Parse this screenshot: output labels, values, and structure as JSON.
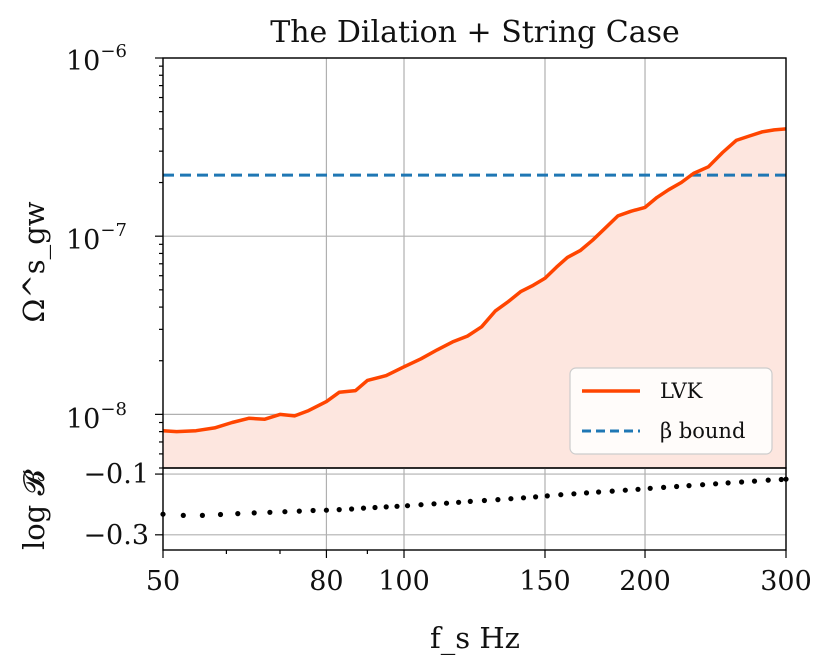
{
  "chart_data": [
    {
      "panel": "main",
      "type": "line",
      "title": "The Dilation + String Case",
      "ylabel": "Ω^s_gw",
      "xscale": "log",
      "yscale": "log",
      "xlim": [
        50,
        300
      ],
      "ylim": [
        5e-09,
        1e-06
      ],
      "ytick_labels": [
        {
          "base": "10",
          "exp": "−6",
          "value": 1e-06
        },
        {
          "base": "10",
          "exp": "−7",
          "value": 1e-07
        },
        {
          "base": "10",
          "exp": "−8",
          "value": 1e-08
        }
      ],
      "series": [
        {
          "name": "LVK",
          "style": "solid",
          "color": "#ff4500",
          "fill_below": true,
          "fill_color": "#fde6df",
          "x": [
            50,
            52,
            55,
            58,
            61,
            64,
            67,
            70,
            73,
            76,
            80,
            83,
            87,
            90,
            95,
            100,
            105,
            110,
            115,
            120,
            125,
            130,
            135,
            140,
            145,
            150,
            155,
            160,
            166,
            172,
            178,
            185,
            192,
            200,
            207,
            214,
            222,
            230,
            240,
            250,
            260,
            270,
            280,
            290,
            300
          ],
          "y": [
            8.1e-09,
            8e-09,
            8.1e-09,
            8.4e-09,
            9e-09,
            9.5e-09,
            9.4e-09,
            1e-08,
            9.8e-09,
            1.05e-08,
            1.18e-08,
            1.33e-08,
            1.36e-08,
            1.55e-08,
            1.65e-08,
            1.85e-08,
            2.05e-08,
            2.3e-08,
            2.55e-08,
            2.75e-08,
            3.1e-08,
            3.8e-08,
            4.3e-08,
            4.9e-08,
            5.3e-08,
            5.8e-08,
            6.7e-08,
            7.6e-08,
            8.3e-08,
            9.5e-08,
            1.1e-07,
            1.3e-07,
            1.38e-07,
            1.45e-07,
            1.65e-07,
            1.82e-07,
            2e-07,
            2.25e-07,
            2.45e-07,
            2.95e-07,
            3.45e-07,
            3.65e-07,
            3.85e-07,
            3.95e-07,
            4e-07
          ]
        },
        {
          "name": "β bound",
          "style": "dashed",
          "color": "#1f77b4",
          "x": [
            50,
            300
          ],
          "y": [
            2.2e-07,
            2.2e-07
          ]
        }
      ],
      "legend": {
        "placement": "lower-right",
        "entries": [
          "LVK",
          "β bound"
        ]
      }
    },
    {
      "panel": "lower",
      "type": "scatter",
      "ylabel": "log 𝓑",
      "xlabel": "f_s Hz",
      "xscale": "log",
      "xlim": [
        50,
        300
      ],
      "ylim": [
        -0.35,
        -0.08
      ],
      "yticks": [
        -0.1,
        -0.3
      ],
      "ytick_labels": [
        "−0.1",
        "−0.3"
      ],
      "xticks": [
        50,
        80,
        100,
        150,
        200,
        300
      ],
      "xtick_labels": [
        "50",
        "80",
        "100",
        "150",
        "200",
        "300"
      ],
      "series": [
        {
          "name": "log B",
          "color": "#000000",
          "x": [
            50,
            53,
            56,
            59,
            62,
            65,
            68,
            71,
            74,
            77,
            80,
            83,
            86,
            89,
            92,
            95,
            98,
            101,
            105,
            109,
            113,
            117,
            121,
            126,
            131,
            136,
            141,
            146,
            151,
            157,
            163,
            169,
            175,
            182,
            189,
            196,
            203,
            211,
            219,
            227,
            236,
            245,
            254,
            264,
            274,
            285,
            296,
            300
          ],
          "y": [
            -0.232,
            -0.236,
            -0.236,
            -0.233,
            -0.23,
            -0.228,
            -0.226,
            -0.224,
            -0.222,
            -0.22,
            -0.219,
            -0.217,
            -0.215,
            -0.212,
            -0.21,
            -0.208,
            -0.206,
            -0.204,
            -0.201,
            -0.198,
            -0.196,
            -0.193,
            -0.19,
            -0.187,
            -0.184,
            -0.181,
            -0.178,
            -0.175,
            -0.172,
            -0.168,
            -0.165,
            -0.162,
            -0.159,
            -0.156,
            -0.153,
            -0.15,
            -0.147,
            -0.144,
            -0.141,
            -0.138,
            -0.135,
            -0.132,
            -0.129,
            -0.126,
            -0.123,
            -0.12,
            -0.118,
            -0.117
          ]
        }
      ]
    }
  ]
}
